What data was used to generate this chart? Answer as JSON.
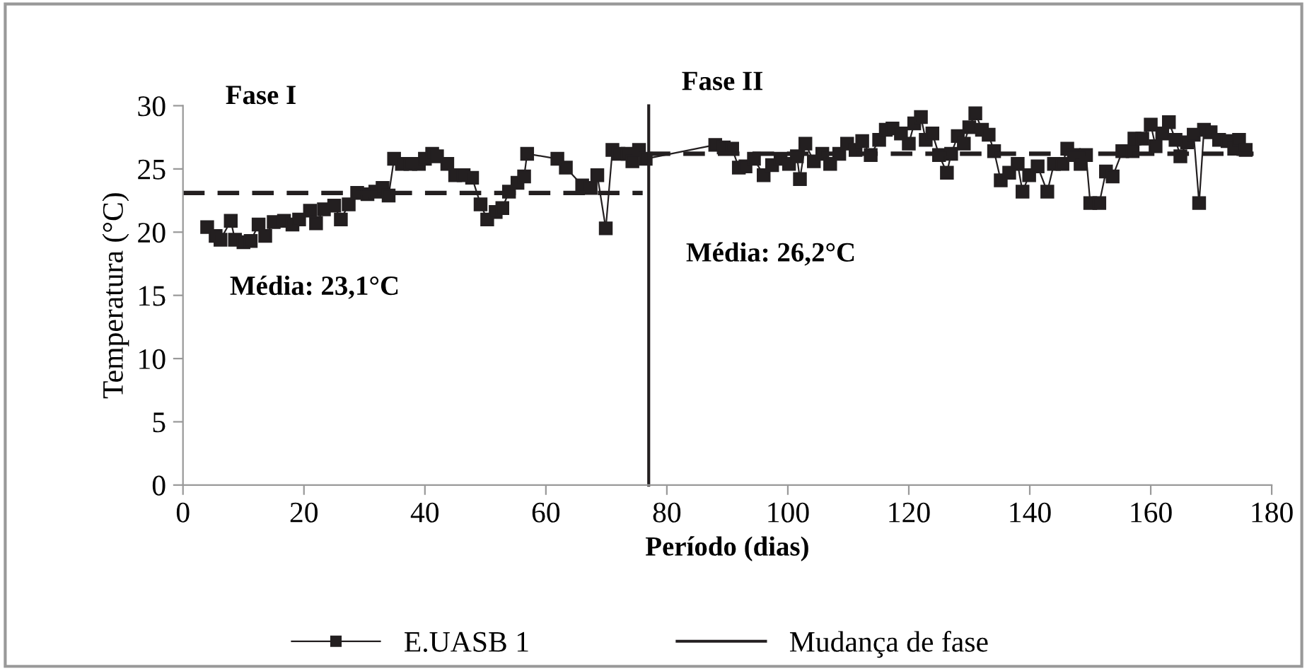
{
  "chart_data": {
    "type": "line",
    "xlabel": "Período (dias)",
    "ylabel": "Temperatura (°C)",
    "xlim": [
      0,
      180
    ],
    "xticks": [
      0,
      20,
      40,
      60,
      80,
      100,
      120,
      140,
      160,
      180
    ],
    "ylim": [
      0,
      30
    ],
    "yticks": [
      0,
      5,
      10,
      15,
      20,
      25,
      30
    ],
    "grid": false,
    "legend": "bottom",
    "series": [
      {
        "name": "E.UASB 1",
        "color": "#231f20",
        "marker": "square",
        "line_style": "solid",
        "x": [
          4,
          5.4,
          6.2,
          7.9,
          8.6,
          10,
          11.2,
          12.5,
          13.6,
          15,
          16.7,
          18.1,
          19.2,
          21,
          22,
          23.3,
          25,
          26.1,
          27.4,
          28.8,
          30.5,
          31.8,
          33,
          34,
          34.9,
          36.2,
          37.6,
          39,
          40,
          41.2,
          42,
          43.7,
          45,
          46.4,
          47.8,
          49.2,
          50.3,
          51.7,
          52.8,
          53.9,
          55.3,
          56.4,
          56.9,
          61.9,
          63.3,
          66,
          67.4,
          68.5,
          69.9,
          71,
          72,
          73.5,
          74.3,
          75.4,
          76.5,
          88,
          89.4,
          90.8,
          91.9,
          93,
          94.4,
          96,
          97.4,
          98.8,
          100.2,
          101.5,
          102,
          102.9,
          104.3,
          105.7,
          107,
          108.5,
          109.8,
          111.2,
          112.3,
          113.7,
          115.1,
          116.2,
          117.3,
          118.7,
          120,
          120.9,
          122,
          122.8,
          123.9,
          125,
          126.3,
          127,
          128.1,
          129.1,
          130,
          131,
          132.1,
          133.2,
          134.1,
          135.2,
          136.6,
          138,
          138.8,
          139.9,
          141.3,
          142.9,
          144,
          145.4,
          146.2,
          147.3,
          148.4,
          149.3,
          150,
          151.5,
          152.6,
          153.7,
          155.3,
          157,
          157.3,
          158.6,
          160,
          160.8,
          161.9,
          163,
          164.1,
          164.9,
          166,
          167.1,
          168,
          168.8,
          169.9,
          171.3,
          172.7,
          173.8,
          174.6,
          175.7
        ],
        "values": [
          20.4,
          19.7,
          19.4,
          20.9,
          19.4,
          19.2,
          19.3,
          20.6,
          19.7,
          20.8,
          20.9,
          20.6,
          21.0,
          21.7,
          20.7,
          21.8,
          22.1,
          21.0,
          22.2,
          23.1,
          23.0,
          23.2,
          23.5,
          22.9,
          25.8,
          25.4,
          25.4,
          25.4,
          25.8,
          26.2,
          26.0,
          25.4,
          24.5,
          24.5,
          24.3,
          22.2,
          21.0,
          21.6,
          21.9,
          23.2,
          23.9,
          24.4,
          26.2,
          25.8,
          25.1,
          23.7,
          23.5,
          24.5,
          20.3,
          26.5,
          26.2,
          26.2,
          25.6,
          26.5,
          25.8,
          26.9,
          26.7,
          26.6,
          25.1,
          25.2,
          25.8,
          24.5,
          25.3,
          25.8,
          25.4,
          26.0,
          24.2,
          27.0,
          25.6,
          26.2,
          25.4,
          26.2,
          27.0,
          26.5,
          27.2,
          26.1,
          27.3,
          28.1,
          28.2,
          27.8,
          27.0,
          28.6,
          29.1,
          27.3,
          27.8,
          26.1,
          24.7,
          26.2,
          27.6,
          27.0,
          28.3,
          29.4,
          28.1,
          27.7,
          26.4,
          24.1,
          24.7,
          25.4,
          23.2,
          24.5,
          25.2,
          23.2,
          25.4,
          25.4,
          26.6,
          26.1,
          25.4,
          26.1,
          22.3,
          22.3,
          24.8,
          24.4,
          26.4,
          26.4,
          27.4,
          27.4,
          28.5,
          26.8,
          27.8,
          28.7,
          27.3,
          26.0,
          27.1,
          27.7,
          22.3,
          28.1,
          27.9,
          27.3,
          27.2,
          26.6,
          27.3,
          26.5
        ]
      },
      {
        "name": "Mudança de fase",
        "color": "#231f20",
        "marker": "none",
        "line_style": "solid",
        "x": [
          77,
          77
        ],
        "values": [
          0,
          30
        ]
      },
      {
        "color": "#231f20",
        "marker": "none",
        "line_style": "dashed",
        "x": [
          0,
          76
        ],
        "values": [
          23.1,
          23.1
        ]
      },
      {
        "color": "#231f20",
        "marker": "none",
        "line_style": "dashed",
        "x": [
          77,
          177
        ],
        "values": [
          26.2,
          26.2
        ]
      }
    ],
    "annotations": [
      "Fase I",
      "Média: 23,1°C",
      "Fase II",
      "Média: 26,2°C"
    ]
  }
}
